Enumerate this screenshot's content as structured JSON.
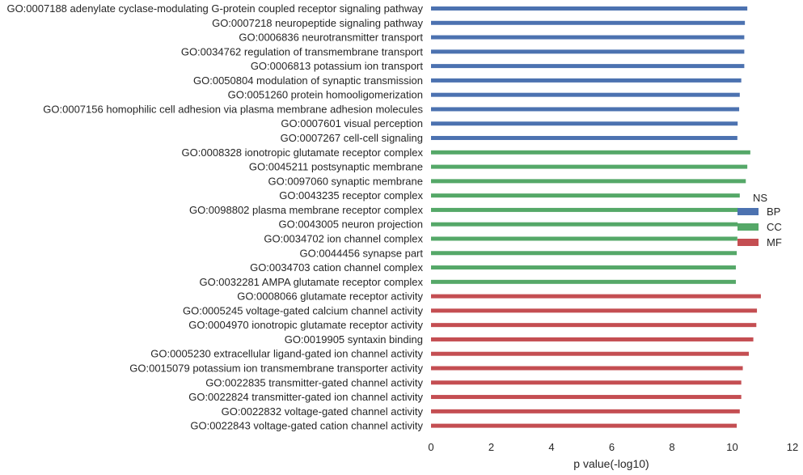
{
  "chart_data": {
    "type": "bar",
    "orientation": "horizontal",
    "xlabel": "p value(-log10)",
    "xlim": [
      0,
      12
    ],
    "xticks": [
      "0",
      "2",
      "4",
      "6",
      "8",
      "10",
      "12"
    ],
    "grid": false,
    "legend": {
      "title": "NS",
      "placement": "right",
      "entries": [
        {
          "name": "BP",
          "color": "#4c72b0"
        },
        {
          "name": "CC",
          "color": "#55a868"
        },
        {
          "name": "MF",
          "color": "#c44e52"
        }
      ]
    },
    "bars": [
      {
        "label": "GO:0007188 adenylate cyclase-modulating G-protein coupled receptor signaling pathway",
        "value": 10.5,
        "group": "BP"
      },
      {
        "label": "GO:0007218 neuropeptide signaling pathway",
        "value": 10.42,
        "group": "BP"
      },
      {
        "label": "GO:0006836 neurotransmitter transport",
        "value": 10.4,
        "group": "BP"
      },
      {
        "label": "GO:0034762 regulation of transmembrane transport",
        "value": 10.4,
        "group": "BP"
      },
      {
        "label": "GO:0006813 potassium ion transport",
        "value": 10.4,
        "group": "BP"
      },
      {
        "label": "GO:0050804 modulation of synaptic transmission",
        "value": 10.3,
        "group": "BP"
      },
      {
        "label": "GO:0051260 protein homooligomerization",
        "value": 10.25,
        "group": "BP"
      },
      {
        "label": "GO:0007156 homophilic cell adhesion via plasma membrane adhesion molecules",
        "value": 10.23,
        "group": "BP"
      },
      {
        "label": "GO:0007601 visual perception",
        "value": 10.18,
        "group": "BP"
      },
      {
        "label": "GO:0007267 cell-cell signaling",
        "value": 10.17,
        "group": "BP"
      },
      {
        "label": "GO:0008328 ionotropic glutamate receptor complex",
        "value": 10.6,
        "group": "CC"
      },
      {
        "label": "GO:0045211 postsynaptic membrane",
        "value": 10.5,
        "group": "CC"
      },
      {
        "label": "GO:0097060 synaptic membrane",
        "value": 10.45,
        "group": "CC"
      },
      {
        "label": "GO:0043235 receptor complex",
        "value": 10.25,
        "group": "CC"
      },
      {
        "label": "GO:0098802 plasma membrane receptor complex",
        "value": 10.2,
        "group": "CC"
      },
      {
        "label": "GO:0043005 neuron projection",
        "value": 10.18,
        "group": "CC"
      },
      {
        "label": "GO:0034702 ion channel complex",
        "value": 10.17,
        "group": "CC"
      },
      {
        "label": "GO:0044456 synapse part",
        "value": 10.15,
        "group": "CC"
      },
      {
        "label": "GO:0034703 cation channel complex",
        "value": 10.12,
        "group": "CC"
      },
      {
        "label": "GO:0032281 AMPA glutamate receptor complex",
        "value": 10.12,
        "group": "CC"
      },
      {
        "label": "GO:0008066 glutamate receptor activity",
        "value": 10.95,
        "group": "MF"
      },
      {
        "label": "GO:0005245 voltage-gated calcium channel activity",
        "value": 10.82,
        "group": "MF"
      },
      {
        "label": "GO:0004970 ionotropic glutamate receptor activity",
        "value": 10.8,
        "group": "MF"
      },
      {
        "label": "GO:0019905 syntaxin binding",
        "value": 10.7,
        "group": "MF"
      },
      {
        "label": "GO:0005230 extracellular ligand-gated ion channel activity",
        "value": 10.55,
        "group": "MF"
      },
      {
        "label": "GO:0015079 potassium ion transmembrane transporter activity",
        "value": 10.35,
        "group": "MF"
      },
      {
        "label": "GO:0022835 transmitter-gated channel activity",
        "value": 10.3,
        "group": "MF"
      },
      {
        "label": "GO:0022824 transmitter-gated ion channel activity",
        "value": 10.3,
        "group": "MF"
      },
      {
        "label": "GO:0022832 voltage-gated channel activity",
        "value": 10.25,
        "group": "MF"
      },
      {
        "label": "GO:0022843 voltage-gated cation channel activity",
        "value": 10.15,
        "group": "MF"
      }
    ]
  }
}
